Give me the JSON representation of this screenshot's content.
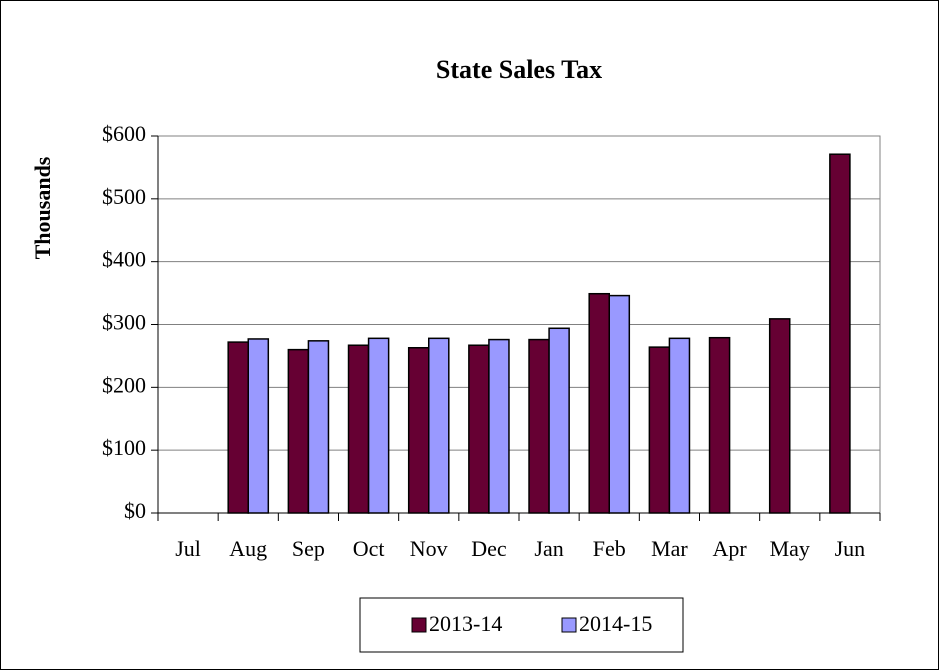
{
  "chart_data": {
    "type": "bar",
    "title": "State Sales Tax",
    "y_label": "Thousands",
    "categories": [
      "Jul",
      "Aug",
      "Sep",
      "Oct",
      "Nov",
      "Dec",
      "Jan",
      "Feb",
      "Mar",
      "Apr",
      "May",
      "Jun"
    ],
    "series": [
      {
        "name": "2013-14",
        "color": "#660033",
        "values": [
          null,
          272,
          260,
          267,
          263,
          267,
          276,
          349,
          264,
          279,
          309,
          571
        ]
      },
      {
        "name": "2014-15",
        "color": "#9999ff",
        "values": [
          null,
          277,
          274,
          278,
          278,
          276,
          294,
          346,
          278,
          null,
          null,
          null
        ]
      }
    ],
    "ylim": [
      0,
      600
    ],
    "yticks": [
      {
        "value": 0,
        "label": "$0"
      },
      {
        "value": 100,
        "label": "$100"
      },
      {
        "value": 200,
        "label": "$200"
      },
      {
        "value": 300,
        "label": "$300"
      },
      {
        "value": 400,
        "label": "$400"
      },
      {
        "value": 500,
        "label": "$500"
      },
      {
        "value": 600,
        "label": "$600"
      }
    ],
    "grid": true,
    "legend": "bottom"
  }
}
